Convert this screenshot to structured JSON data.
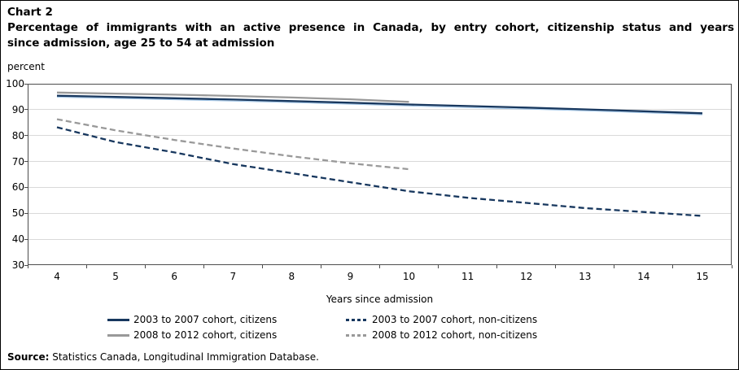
{
  "figure": {
    "chart_label": "Chart 2",
    "title_line1": "Percentage of immigrants with an active presence in Canada, by entry cohort, citizenship status and years",
    "title_line2": "since admission, age 25 to 54 at admission",
    "y_unit_label": "percent",
    "x_axis_title": "Years since admission"
  },
  "chart_data": {
    "type": "line",
    "title": "Percentage of immigrants with an active presence in Canada, by entry cohort, citizenship status and years since admission, age 25 to 54 at admission",
    "xlabel": "Years since admission",
    "ylabel": "percent",
    "ylim": [
      30,
      100
    ],
    "y_ticks": [
      100,
      90,
      80,
      70,
      60,
      50,
      40,
      30
    ],
    "x": [
      4,
      5,
      6,
      7,
      8,
      9,
      10,
      11,
      12,
      13,
      14,
      15
    ],
    "grid": true,
    "legend_position": "bottom",
    "series": [
      {
        "name": "2003 to 2007 cohort, citizens",
        "style": "solid",
        "color": "navy",
        "values": [
          95.4,
          94.9,
          94.4,
          93.9,
          93.3,
          92.7,
          92.0,
          91.4,
          90.8,
          90.1,
          89.4,
          88.6
        ]
      },
      {
        "name": "2008 to 2012 cohort, citizens",
        "style": "solid",
        "color": "gray",
        "values": [
          96.6,
          96.2,
          95.8,
          95.3,
          94.7,
          94.0,
          93.0,
          null,
          null,
          null,
          null,
          null
        ]
      },
      {
        "name": "2003 to 2007 cohort, non-citizens",
        "style": "dashed",
        "color": "navy",
        "values": [
          83.2,
          77.5,
          73.5,
          69.0,
          65.5,
          62.0,
          58.5,
          56.0,
          54.0,
          52.0,
          50.5,
          49.0
        ]
      },
      {
        "name": "2008 to 2012 cohort, non-citizens",
        "style": "dashed",
        "color": "gray",
        "values": [
          86.3,
          82.0,
          78.3,
          75.0,
          72.0,
          69.3,
          67.0,
          null,
          null,
          null,
          null,
          null
        ]
      }
    ]
  },
  "legend": {
    "columns": [
      {
        "items": [
          {
            "series": 0
          },
          {
            "series": 1
          }
        ]
      },
      {
        "items": [
          {
            "series": 2
          },
          {
            "series": 3
          }
        ]
      }
    ]
  },
  "source": {
    "label": "Source:",
    "text": "Statistics Canada, Longitudinal Immigration Database."
  },
  "colors": {
    "navy": "#17375E",
    "gray": "#999999",
    "halo": "#9DC3E6",
    "gridline": "#D9D9D9",
    "frame": "#4D4D4D",
    "text": "#000000"
  }
}
